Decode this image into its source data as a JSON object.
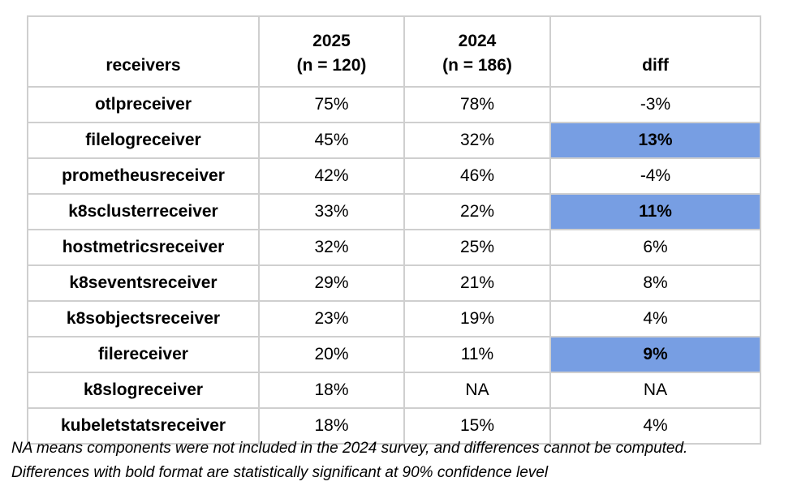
{
  "table": {
    "headers": [
      "receivers",
      "2025\n(n = 120)",
      "2024\n(n = 186)",
      "diff"
    ],
    "header_lines": [
      [
        "receivers"
      ],
      [
        "2025",
        "(n = 120)"
      ],
      [
        "2024",
        "(n = 186)"
      ],
      [
        "diff"
      ]
    ],
    "rows": [
      {
        "name": "otlpreceiver",
        "y2025": "75%",
        "y2024": "78%",
        "diff": "-3%",
        "significant": false
      },
      {
        "name": "filelogreceiver",
        "y2025": "45%",
        "y2024": "32%",
        "diff": "13%",
        "significant": true
      },
      {
        "name": "prometheusreceiver",
        "y2025": "42%",
        "y2024": "46%",
        "diff": "-4%",
        "significant": false
      },
      {
        "name": "k8sclusterreceiver",
        "y2025": "33%",
        "y2024": "22%",
        "diff": "11%",
        "significant": true
      },
      {
        "name": "hostmetricsreceiver",
        "y2025": "32%",
        "y2024": "25%",
        "diff": "6%",
        "significant": false
      },
      {
        "name": "k8seventsreceiver",
        "y2025": "29%",
        "y2024": "21%",
        "diff": "8%",
        "significant": false
      },
      {
        "name": "k8sobjectsreceiver",
        "y2025": "23%",
        "y2024": "19%",
        "diff": "4%",
        "significant": false
      },
      {
        "name": "filereceiver",
        "y2025": "20%",
        "y2024": "11%",
        "diff": "9%",
        "significant": true
      },
      {
        "name": "k8slogreceiver",
        "y2025": "18%",
        "y2024": "NA",
        "diff": "NA",
        "significant": false
      },
      {
        "name": "kubeletstatsreceiver",
        "y2025": "18%",
        "y2024": "15%",
        "diff": "4%",
        "significant": false
      }
    ],
    "highlight_color": "#779ee3"
  },
  "notes": [
    "NA means components were not included in the 2024 survey, and differences cannot be computed.",
    "Differences with bold format are statistically significant at 90% confidence level"
  ]
}
